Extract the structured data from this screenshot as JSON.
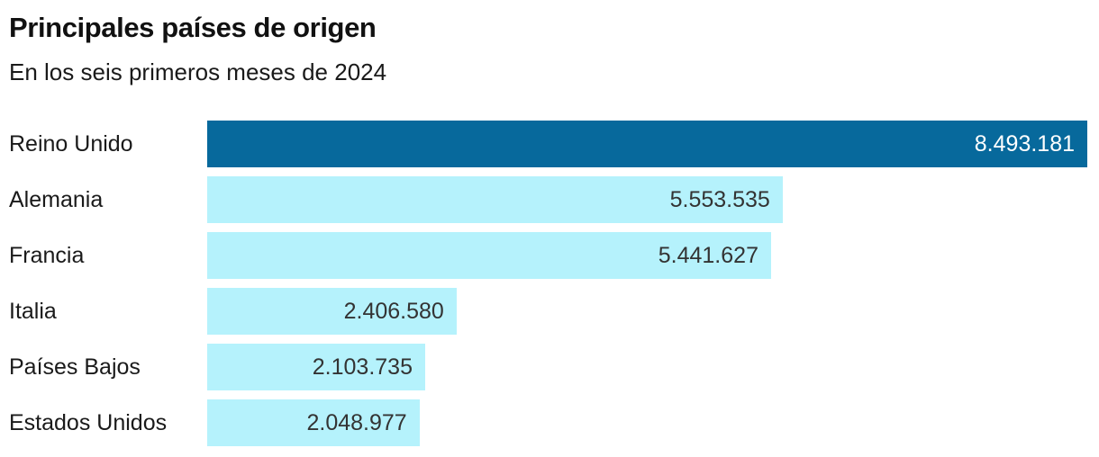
{
  "header": {
    "title": "Principales países de origen",
    "subtitle": "En los seis primeros meses de 2024"
  },
  "colors": {
    "bar_highlight": "#07699c",
    "bar_default": "#b5f2fc",
    "value_on_highlight": "#ffffff",
    "value_on_default": "#333333",
    "label_text": "#1a1a1a",
    "title_text": "#111111",
    "background": "#ffffff"
  },
  "chart_data": {
    "type": "bar",
    "orientation": "horizontal",
    "title": "Principales países de origen",
    "subtitle": "En los seis primeros meses de 2024",
    "categories": [
      "Reino Unido",
      "Alemania",
      "Francia",
      "Italia",
      "Países Bajos",
      "Estados Unidos"
    ],
    "values": [
      8493181,
      5553535,
      5441627,
      2406580,
      2103735,
      2048977
    ],
    "value_labels": [
      "8.493.181",
      "5.553.535",
      "5.441.627",
      "2.406.580",
      "2.103.735",
      "2.048.977"
    ],
    "highlighted_index": 0,
    "xlim": [
      0,
      8493181
    ],
    "grid": false,
    "legend": false,
    "value_label_position": "inside-end"
  }
}
